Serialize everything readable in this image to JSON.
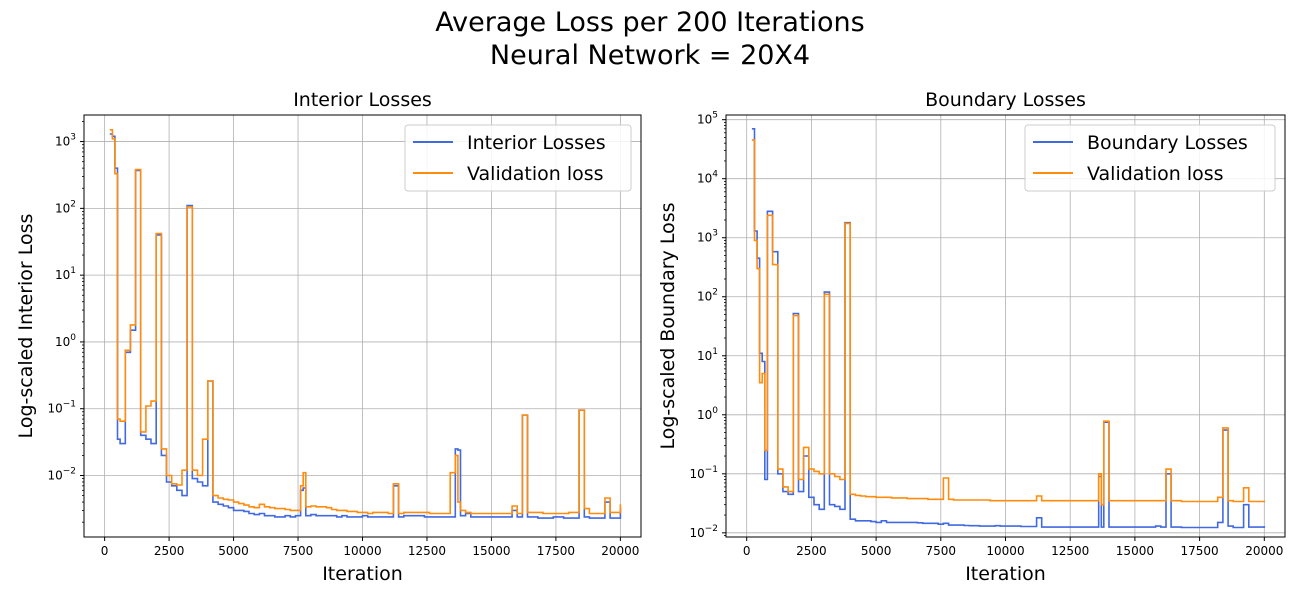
{
  "suptitle": {
    "line1": "Average Loss per 200 Iterations",
    "line2": "Neural Network = 20X4"
  },
  "colors": {
    "series1": "#4169e1",
    "series2": "#ff8c0e",
    "grid": "#b0b0b0"
  },
  "chart_data": [
    {
      "type": "line",
      "title": "Interior Losses",
      "xlabel": "Iteration",
      "ylabel": "Log-scaled Interior Loss",
      "yscale": "log",
      "xlim": [
        -800,
        20800
      ],
      "ylim": [
        0.0012,
        2500
      ],
      "xticks": [
        0,
        2500,
        5000,
        7500,
        10000,
        12500,
        15000,
        17500,
        20000
      ],
      "xtick_labels": [
        "0",
        "2500",
        "5000",
        "7500",
        "10000",
        "12500",
        "15000",
        "17500",
        "20000"
      ],
      "ytick_exponents": [
        -2,
        -1,
        0,
        1,
        2,
        3
      ],
      "grid": true,
      "legend_position": "top-right",
      "series": [
        {
          "name": "Interior Losses",
          "x": [
            200,
            300,
            400,
            500,
            600,
            800,
            1000,
            1200,
            1400,
            1600,
            1800,
            2000,
            2200,
            2400,
            2600,
            2800,
            3000,
            3200,
            3400,
            3600,
            3800,
            4000,
            4200,
            4400,
            4600,
            4800,
            5000,
            5200,
            5400,
            5600,
            5800,
            6000,
            6200,
            6400,
            6600,
            6800,
            7000,
            7200,
            7400,
            7600,
            7700,
            7800,
            8000,
            8200,
            8400,
            8600,
            8800,
            9000,
            9200,
            9400,
            9600,
            9800,
            10000,
            10200,
            10400,
            10600,
            10800,
            11000,
            11200,
            11400,
            11600,
            11800,
            12000,
            12200,
            12400,
            12600,
            12800,
            13000,
            13200,
            13400,
            13600,
            13700,
            13800,
            14000,
            14200,
            14400,
            14600,
            14800,
            15000,
            15200,
            15400,
            15600,
            15800,
            16000,
            16200,
            16400,
            16600,
            16800,
            17000,
            17200,
            17400,
            17600,
            17800,
            18000,
            18200,
            18400,
            18600,
            18800,
            19000,
            19200,
            19400,
            19600,
            19800,
            20000
          ],
          "y": [
            1300,
            1200,
            400,
            0.035,
            0.03,
            0.7,
            1.5,
            370,
            0.04,
            0.035,
            0.03,
            40,
            0.02,
            0.008,
            0.007,
            0.006,
            0.005,
            110,
            0.009,
            0.008,
            0.007,
            0.26,
            0.004,
            0.0037,
            0.0035,
            0.0033,
            0.003,
            0.003,
            0.0029,
            0.0027,
            0.0026,
            0.0027,
            0.0025,
            0.0025,
            0.0024,
            0.0024,
            0.0025,
            0.0024,
            0.0025,
            0.006,
            0.0065,
            0.0025,
            0.0026,
            0.0025,
            0.0025,
            0.0025,
            0.0025,
            0.0024,
            0.0025,
            0.0024,
            0.0024,
            0.0024,
            0.0025,
            0.0024,
            0.0024,
            0.0024,
            0.0024,
            0.0024,
            0.007,
            0.0024,
            0.0025,
            0.0025,
            0.0025,
            0.0025,
            0.0024,
            0.0024,
            0.0024,
            0.0024,
            0.0024,
            0.0024,
            0.025,
            0.024,
            0.0025,
            0.0027,
            0.0024,
            0.0024,
            0.0024,
            0.0024,
            0.0024,
            0.0024,
            0.0024,
            0.0024,
            0.003,
            0.0024,
            0.08,
            0.0024,
            0.0024,
            0.0023,
            0.0023,
            0.0023,
            0.0024,
            0.0024,
            0.0023,
            0.0023,
            0.0023,
            0.095,
            0.0024,
            0.0023,
            0.0023,
            0.0023,
            0.004,
            0.0023,
            0.0023,
            0.0033
          ]
        },
        {
          "name": "Validation loss",
          "x": [
            200,
            300,
            400,
            500,
            600,
            800,
            1000,
            1200,
            1400,
            1600,
            1800,
            2000,
            2200,
            2400,
            2600,
            2800,
            3000,
            3200,
            3400,
            3600,
            3800,
            4000,
            4200,
            4400,
            4600,
            4800,
            5000,
            5200,
            5400,
            5600,
            5800,
            6000,
            6200,
            6400,
            6600,
            6800,
            7000,
            7200,
            7400,
            7600,
            7700,
            7800,
            8000,
            8200,
            8400,
            8600,
            8800,
            9000,
            9200,
            9400,
            9600,
            9800,
            10000,
            10200,
            10400,
            10600,
            10800,
            11000,
            11200,
            11400,
            11600,
            11800,
            12000,
            12200,
            12400,
            12600,
            12800,
            13000,
            13200,
            13400,
            13600,
            13700,
            13800,
            14000,
            14200,
            14400,
            14600,
            14800,
            15000,
            15200,
            15400,
            15600,
            15800,
            16000,
            16200,
            16400,
            16600,
            16800,
            17000,
            17200,
            17400,
            17600,
            17800,
            18000,
            18200,
            18400,
            18600,
            18800,
            19000,
            19200,
            19400,
            19600,
            19800,
            20000
          ],
          "y": [
            1500,
            1100,
            330,
            0.07,
            0.065,
            0.75,
            1.8,
            380,
            0.045,
            0.11,
            0.13,
            42,
            0.025,
            0.01,
            0.0075,
            0.0072,
            0.012,
            105,
            0.012,
            0.01,
            0.035,
            0.26,
            0.005,
            0.0046,
            0.0044,
            0.0043,
            0.004,
            0.0038,
            0.0036,
            0.0034,
            0.0033,
            0.0037,
            0.0034,
            0.0033,
            0.0032,
            0.0032,
            0.0031,
            0.003,
            0.003,
            0.007,
            0.011,
            0.0034,
            0.0035,
            0.0034,
            0.0034,
            0.0033,
            0.0031,
            0.003,
            0.003,
            0.0029,
            0.0029,
            0.0028,
            0.0028,
            0.0027,
            0.0028,
            0.0028,
            0.0028,
            0.0027,
            0.0075,
            0.0027,
            0.0028,
            0.0028,
            0.0028,
            0.0028,
            0.0028,
            0.0027,
            0.0027,
            0.0027,
            0.0027,
            0.011,
            0.02,
            0.004,
            0.003,
            0.0028,
            0.0027,
            0.0027,
            0.0027,
            0.0027,
            0.0027,
            0.0027,
            0.0027,
            0.0027,
            0.0035,
            0.0027,
            0.08,
            0.0028,
            0.0028,
            0.0028,
            0.0027,
            0.0027,
            0.0027,
            0.0027,
            0.0027,
            0.0028,
            0.0028,
            0.095,
            0.0032,
            0.0027,
            0.0027,
            0.0027,
            0.0046,
            0.0028,
            0.0028,
            0.0037
          ]
        }
      ]
    },
    {
      "type": "line",
      "title": "Boundary Losses",
      "xlabel": "Iteration",
      "ylabel": "Log-scaled Boundary Loss",
      "yscale": "log",
      "xlim": [
        -800,
        20800
      ],
      "ylim": [
        0.0085,
        120000
      ],
      "xticks": [
        0,
        2500,
        5000,
        7500,
        10000,
        12500,
        15000,
        17500,
        20000
      ],
      "xtick_labels": [
        "0",
        "2500",
        "5000",
        "7500",
        "10000",
        "12500",
        "15000",
        "17500",
        "20000"
      ],
      "ytick_exponents": [
        -2,
        -1,
        0,
        1,
        2,
        3,
        4,
        5
      ],
      "grid": true,
      "legend_position": "top-right",
      "series": [
        {
          "name": "Boundary Losses",
          "x": [
            200,
            300,
            400,
            500,
            600,
            700,
            800,
            1000,
            1200,
            1400,
            1600,
            1800,
            2000,
            2200,
            2400,
            2600,
            2800,
            3000,
            3200,
            3400,
            3600,
            3800,
            4000,
            4200,
            4400,
            4600,
            4800,
            5000,
            5200,
            5400,
            5600,
            5800,
            6000,
            6200,
            6400,
            6600,
            6800,
            7000,
            7200,
            7400,
            7600,
            7800,
            8000,
            8200,
            8400,
            8600,
            8800,
            9000,
            9200,
            9400,
            9600,
            9800,
            10000,
            10200,
            10400,
            10600,
            10800,
            11000,
            11200,
            11400,
            11600,
            11800,
            12000,
            12200,
            12400,
            12600,
            12800,
            13000,
            13200,
            13400,
            13600,
            13700,
            13800,
            14000,
            14200,
            14400,
            14600,
            14800,
            15000,
            15200,
            15400,
            15600,
            15800,
            16000,
            16200,
            16400,
            16600,
            16800,
            17000,
            17200,
            17400,
            17600,
            17800,
            18000,
            18200,
            18400,
            18600,
            18800,
            19000,
            19200,
            19400,
            19600,
            19800,
            20000
          ],
          "y": [
            70000,
            1300,
            450,
            11,
            8,
            0.08,
            2800,
            580,
            0.1,
            0.05,
            0.045,
            52,
            0.05,
            0.2,
            0.04,
            0.03,
            0.025,
            120,
            0.03,
            0.028,
            0.025,
            1800,
            0.017,
            0.016,
            0.016,
            0.016,
            0.0155,
            0.015,
            0.016,
            0.015,
            0.015,
            0.015,
            0.015,
            0.015,
            0.015,
            0.0148,
            0.0145,
            0.0145,
            0.0145,
            0.014,
            0.0145,
            0.0135,
            0.0135,
            0.0135,
            0.0133,
            0.0132,
            0.0132,
            0.013,
            0.013,
            0.013,
            0.0132,
            0.013,
            0.013,
            0.013,
            0.013,
            0.0128,
            0.0128,
            0.0128,
            0.018,
            0.0125,
            0.0125,
            0.0125,
            0.0125,
            0.0125,
            0.0125,
            0.0125,
            0.0125,
            0.0125,
            0.0125,
            0.0125,
            0.09,
            0.0125,
            0.75,
            0.0125,
            0.0125,
            0.0125,
            0.0125,
            0.0125,
            0.0125,
            0.0125,
            0.0125,
            0.0125,
            0.013,
            0.0125,
            0.1,
            0.0125,
            0.0125,
            0.0123,
            0.0123,
            0.0123,
            0.0123,
            0.0123,
            0.0123,
            0.0123,
            0.015,
            0.55,
            0.013,
            0.0123,
            0.0123,
            0.03,
            0.0125,
            0.0125,
            0.0125,
            0.013
          ]
        },
        {
          "name": "Validation loss",
          "x": [
            200,
            300,
            400,
            500,
            600,
            700,
            800,
            1000,
            1200,
            1400,
            1600,
            1800,
            2000,
            2200,
            2400,
            2600,
            2800,
            3000,
            3200,
            3400,
            3600,
            3800,
            4000,
            4200,
            4400,
            4600,
            4800,
            5000,
            5200,
            5400,
            5600,
            5800,
            6000,
            6200,
            6400,
            6600,
            6800,
            7000,
            7200,
            7400,
            7600,
            7800,
            8000,
            8200,
            8400,
            8600,
            8800,
            9000,
            9200,
            9400,
            9600,
            9800,
            10000,
            10200,
            10400,
            10600,
            10800,
            11000,
            11200,
            11400,
            11600,
            11800,
            12000,
            12200,
            12400,
            12600,
            12800,
            13000,
            13200,
            13400,
            13600,
            13700,
            13800,
            14000,
            14200,
            14400,
            14600,
            14800,
            15000,
            15200,
            15400,
            15600,
            15800,
            16000,
            16200,
            16400,
            16600,
            16800,
            17000,
            17200,
            17400,
            17600,
            17800,
            18000,
            18200,
            18400,
            18600,
            18800,
            19000,
            19200,
            19400,
            19600,
            19800,
            20000
          ],
          "y": [
            45000,
            900,
            300,
            3.5,
            5,
            0.25,
            2400,
            350,
            0.12,
            0.06,
            0.05,
            48,
            0.08,
            0.28,
            0.12,
            0.11,
            0.1,
            110,
            0.1,
            0.09,
            0.08,
            1750,
            0.045,
            0.043,
            0.042,
            0.041,
            0.041,
            0.04,
            0.04,
            0.04,
            0.039,
            0.039,
            0.039,
            0.038,
            0.038,
            0.038,
            0.038,
            0.037,
            0.037,
            0.037,
            0.085,
            0.037,
            0.036,
            0.036,
            0.036,
            0.036,
            0.036,
            0.036,
            0.036,
            0.035,
            0.035,
            0.035,
            0.035,
            0.035,
            0.035,
            0.035,
            0.035,
            0.035,
            0.042,
            0.035,
            0.035,
            0.035,
            0.035,
            0.035,
            0.035,
            0.035,
            0.035,
            0.035,
            0.035,
            0.035,
            0.1,
            0.03,
            0.78,
            0.035,
            0.035,
            0.035,
            0.035,
            0.035,
            0.035,
            0.035,
            0.035,
            0.035,
            0.035,
            0.035,
            0.12,
            0.035,
            0.035,
            0.034,
            0.034,
            0.034,
            0.034,
            0.034,
            0.034,
            0.034,
            0.04,
            0.6,
            0.035,
            0.034,
            0.034,
            0.058,
            0.034,
            0.034,
            0.034,
            0.035
          ]
        }
      ]
    }
  ]
}
